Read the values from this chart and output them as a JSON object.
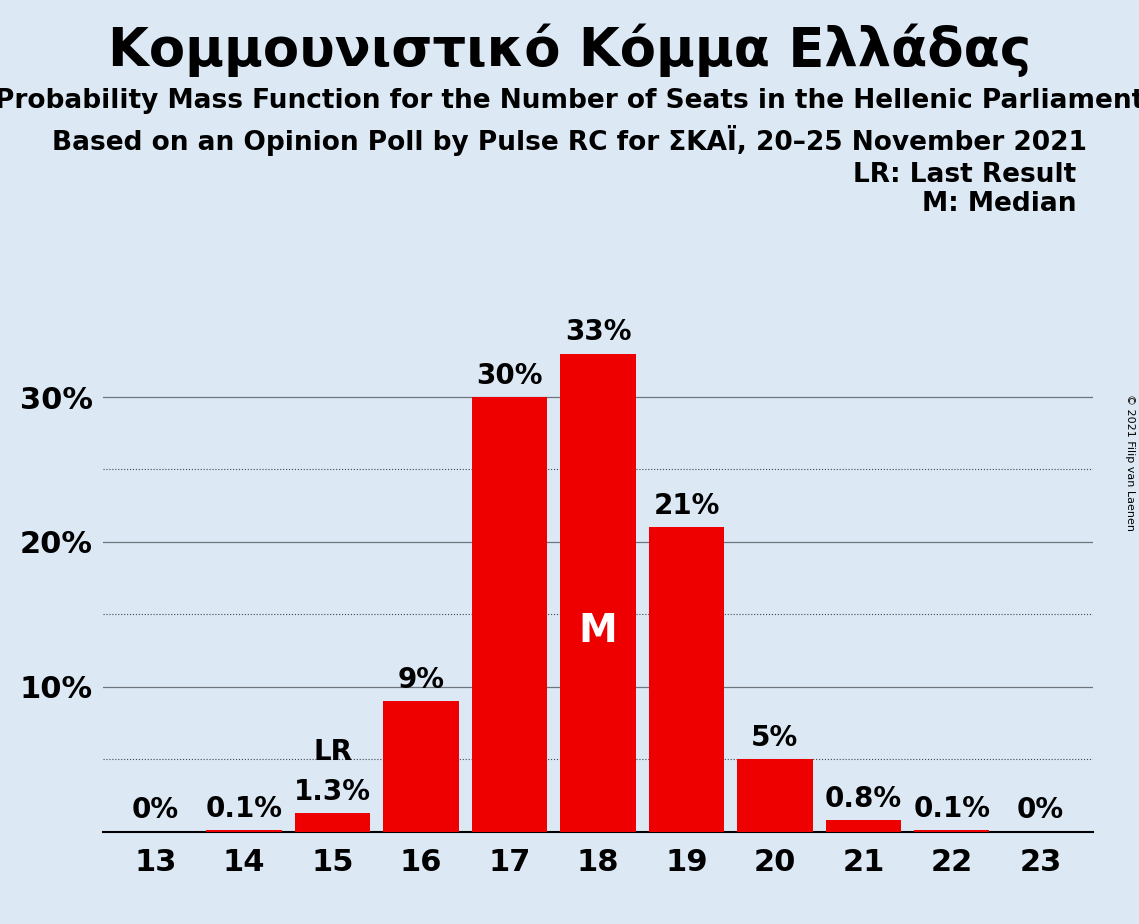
{
  "title": "Κομμουνιστικό Κόμμα Ελλάδας",
  "subtitle1": "Probability Mass Function for the Number of Seats in the Hellenic Parliament",
  "subtitle2": "Based on an Opinion Poll by Pulse RC for ΣΚΑΪ, 20–25 November 2021",
  "copyright": "© 2021 Filip van Laenen",
  "categories": [
    13,
    14,
    15,
    16,
    17,
    18,
    19,
    20,
    21,
    22,
    23
  ],
  "values": [
    0.0,
    0.1,
    1.3,
    9.0,
    30.0,
    33.0,
    21.0,
    5.0,
    0.8,
    0.1,
    0.0
  ],
  "bar_labels": [
    "0%",
    "0.1%",
    "1.3%",
    "9%",
    "30%",
    "33%",
    "21%",
    "5%",
    "0.8%",
    "0.1%",
    "0%"
  ],
  "bar_color": "#ee0000",
  "background_color": "#dce9f5",
  "median_seat": 18,
  "lr_seat": 15,
  "inside_threshold": 15.0,
  "ylim": [
    0,
    37
  ],
  "ytick_positions": [
    0,
    10,
    20,
    30
  ],
  "ytick_labels": [
    "",
    "10%",
    "20%",
    "30%"
  ],
  "grid_solid": [
    10,
    20,
    30
  ],
  "grid_dotted": [
    5,
    15,
    25
  ],
  "legend_lr": "LR: Last Result",
  "legend_m": "M: Median",
  "title_fontsize": 38,
  "subtitle_fontsize": 19,
  "bar_label_fontsize": 20,
  "axis_tick_fontsize": 22,
  "legend_fontsize": 19,
  "m_fontsize": 28,
  "copyright_fontsize": 8
}
